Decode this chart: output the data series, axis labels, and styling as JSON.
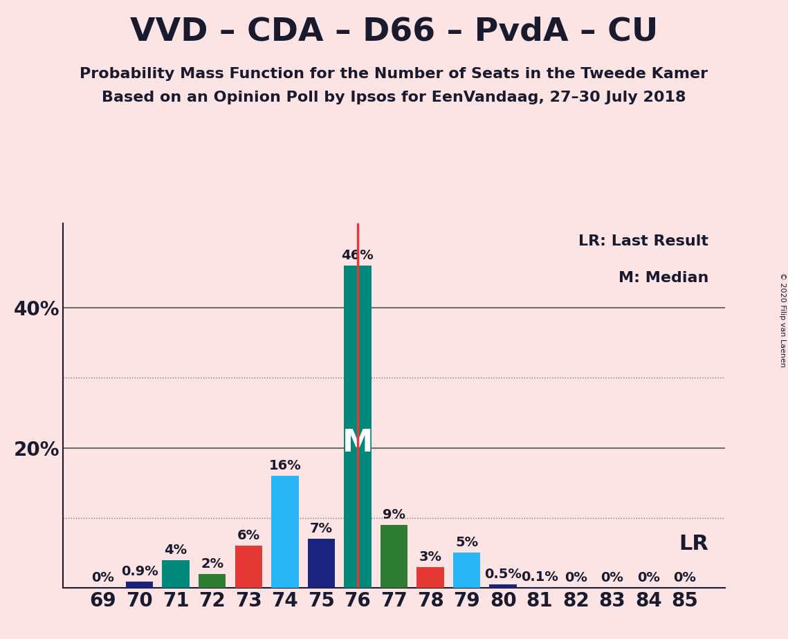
{
  "title": "VVD – CDA – D66 – PvdA – CU",
  "subtitle1": "Probability Mass Function for the Number of Seats in the Tweede Kamer",
  "subtitle2": "Based on an Opinion Poll by Ipsos for EenVandaag, 27–30 July 2018",
  "copyright": "© 2020 Filip van Laenen",
  "legend_lr": "LR: Last Result",
  "legend_m": "M: Median",
  "background_color": "#fce4e4",
  "seats": [
    69,
    70,
    71,
    72,
    73,
    74,
    75,
    76,
    77,
    78,
    79,
    80,
    81,
    82,
    83,
    84,
    85
  ],
  "values": [
    0.0,
    0.9,
    4.0,
    2.0,
    6.0,
    16.0,
    7.0,
    46.0,
    9.0,
    3.0,
    5.0,
    0.5,
    0.1,
    0.0,
    0.0,
    0.0,
    0.0
  ],
  "labels": [
    "0%",
    "0.9%",
    "4%",
    "2%",
    "6%",
    "16%",
    "7%",
    "46%",
    "9%",
    "3%",
    "5%",
    "0.5%",
    "0.1%",
    "0%",
    "0%",
    "0%",
    "0%"
  ],
  "colors": [
    "#1a237e",
    "#1a237e",
    "#00897b",
    "#2e7d32",
    "#e53935",
    "#29b6f6",
    "#1a237e",
    "#00897b",
    "#2e7d32",
    "#e53935",
    "#29b6f6",
    "#1a237e",
    "#1a237e",
    "#1a237e",
    "#1a237e",
    "#1a237e",
    "#1a237e"
  ],
  "median_seat": 76,
  "lr_seat": 76,
  "lr_label": "LR",
  "median_label": "M",
  "ylim": [
    0,
    52
  ],
  "solid_gridlines": [
    20,
    40
  ],
  "dotted_gridlines": [
    10,
    30
  ],
  "axis_color": "#1a1a2e",
  "title_fontsize": 34,
  "subtitle_fontsize": 16,
  "tick_fontsize": 20,
  "bar_label_fontsize": 14,
  "xlim_left": 67.9,
  "xlim_right": 86.1
}
